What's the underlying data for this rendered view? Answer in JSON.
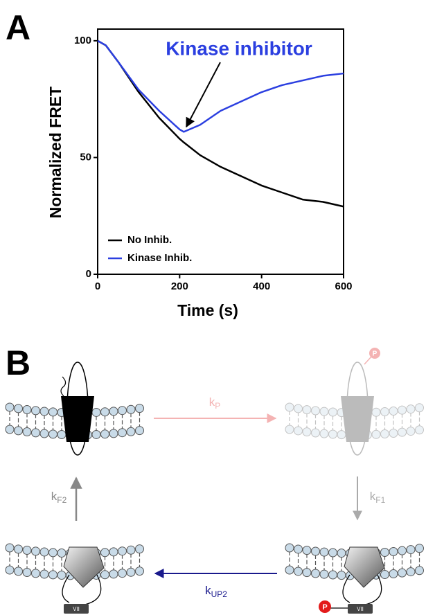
{
  "panel_labels": {
    "a": "A",
    "b": "B"
  },
  "chart_data": {
    "type": "line",
    "x_label": "Time (s)",
    "y_label": "Normalized FRET",
    "annotation": "Kinase inhibitor",
    "x": [
      0,
      20,
      50,
      100,
      150,
      200,
      210,
      250,
      300,
      350,
      400,
      450,
      500,
      550,
      600
    ],
    "series": [
      {
        "name": "No Inhib.",
        "color": "#000000",
        "values": [
          100,
          98,
          91,
          78,
          67,
          58,
          56.5,
          51,
          46,
          42,
          38,
          35,
          32,
          31,
          29
        ]
      },
      {
        "name": "Kinase Inhib.",
        "color": "#2b3fe0",
        "values": [
          100,
          98,
          91,
          79,
          70,
          62,
          61,
          64,
          70,
          74,
          78,
          81,
          83,
          85,
          86
        ]
      }
    ],
    "xlim": [
      0,
      600
    ],
    "xticks": [
      0,
      200,
      400,
      600
    ],
    "ylim": [
      0,
      105
    ],
    "yticks": [
      0,
      50,
      100
    ],
    "grid": false
  },
  "diagram": {
    "rates": [
      {
        "base": "k",
        "sub": "P"
      },
      {
        "base": "k",
        "sub": "F2"
      },
      {
        "base": "k",
        "sub": "F1"
      },
      {
        "base": "k",
        "sub": "UP2"
      }
    ],
    "phospho": [
      "P",
      "P"
    ],
    "domain": [
      "VII",
      "VII"
    ]
  }
}
